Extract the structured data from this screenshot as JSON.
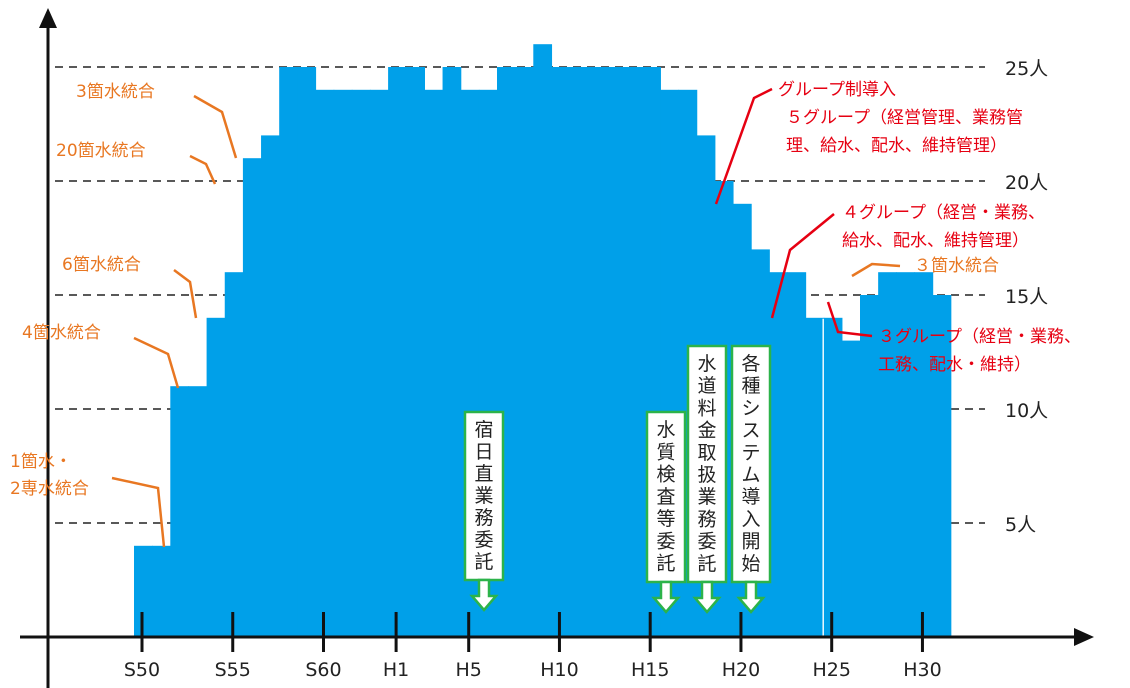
{
  "chart_data": {
    "type": "area",
    "title": "",
    "xlabel": "",
    "ylabel": "",
    "ylim": [
      0,
      27
    ],
    "x_unit": "fiscal year (S50 = 1975, H1 = 1989, H31 = 2019)",
    "x_tick_labels": [
      "S50",
      "S55",
      "S60",
      "H1",
      "H5",
      "H10",
      "H15",
      "H20",
      "H25",
      "H30"
    ],
    "x_tick_years": [
      1975,
      1980,
      1985,
      1989,
      1993,
      1998,
      2003,
      2008,
      2013,
      2018
    ],
    "y_tick_labels": [
      "5人",
      "10人",
      "15人",
      "20人",
      "25人"
    ],
    "y_tick_values": [
      5,
      10,
      15,
      20,
      25
    ],
    "grid": "dashed horizontal lines at 5, 10, 15, 20, 25",
    "color": "#00A0E9",
    "series": [
      {
        "x": [
          1975,
          1976,
          1977,
          1978,
          1979,
          1980,
          1981,
          1982,
          1983,
          1984,
          1985,
          1986,
          1987,
          1988,
          1989,
          1990,
          1991,
          1992,
          1993,
          1994,
          1995,
          1996,
          1997,
          1998,
          1999,
          2000,
          2001,
          2002,
          2003,
          2004,
          2005,
          2006,
          2007,
          2008,
          2009,
          2010,
          2011,
          2012,
          2013,
          2014,
          2015,
          2016,
          2017,
          2018,
          2019
        ],
        "values": [
          4,
          4,
          11,
          11,
          14,
          16,
          21,
          22,
          25,
          25,
          24,
          24,
          24,
          24,
          25,
          25,
          24,
          25,
          24,
          24,
          25,
          25,
          26,
          25,
          25,
          25,
          25,
          25,
          25,
          24,
          24,
          22,
          20,
          19,
          17,
          16,
          16,
          14,
          14,
          13,
          15,
          16,
          16,
          16,
          15
        ]
      }
    ],
    "annotations_left": [
      {
        "label": "1箇水・",
        "label2": "2専水統合"
      },
      {
        "label": "4箇水統合"
      },
      {
        "label": "6箇水統合"
      },
      {
        "label": "20箇水統合"
      },
      {
        "label": "3箇水統合"
      }
    ],
    "annotations_right": [
      {
        "lines": [
          "グループ制導入",
          "５グループ（経営管理、業務管",
          "理、給水、配水、維持管理）"
        ]
      },
      {
        "lines": [
          "４グループ（経営・業務、",
          "給水、配水、維持管理）"
        ]
      },
      {
        "lines": [
          "３箇水統合"
        ]
      },
      {
        "lines": [
          "３グループ（経営・業務、",
          "工務、配水・維持）"
        ]
      }
    ],
    "events": [
      {
        "label": "宿日直業務委託"
      },
      {
        "label": "水質検査等委託"
      },
      {
        "label": "水道料金取扱業務委託"
      },
      {
        "label": "各種システム導入開始"
      }
    ]
  }
}
